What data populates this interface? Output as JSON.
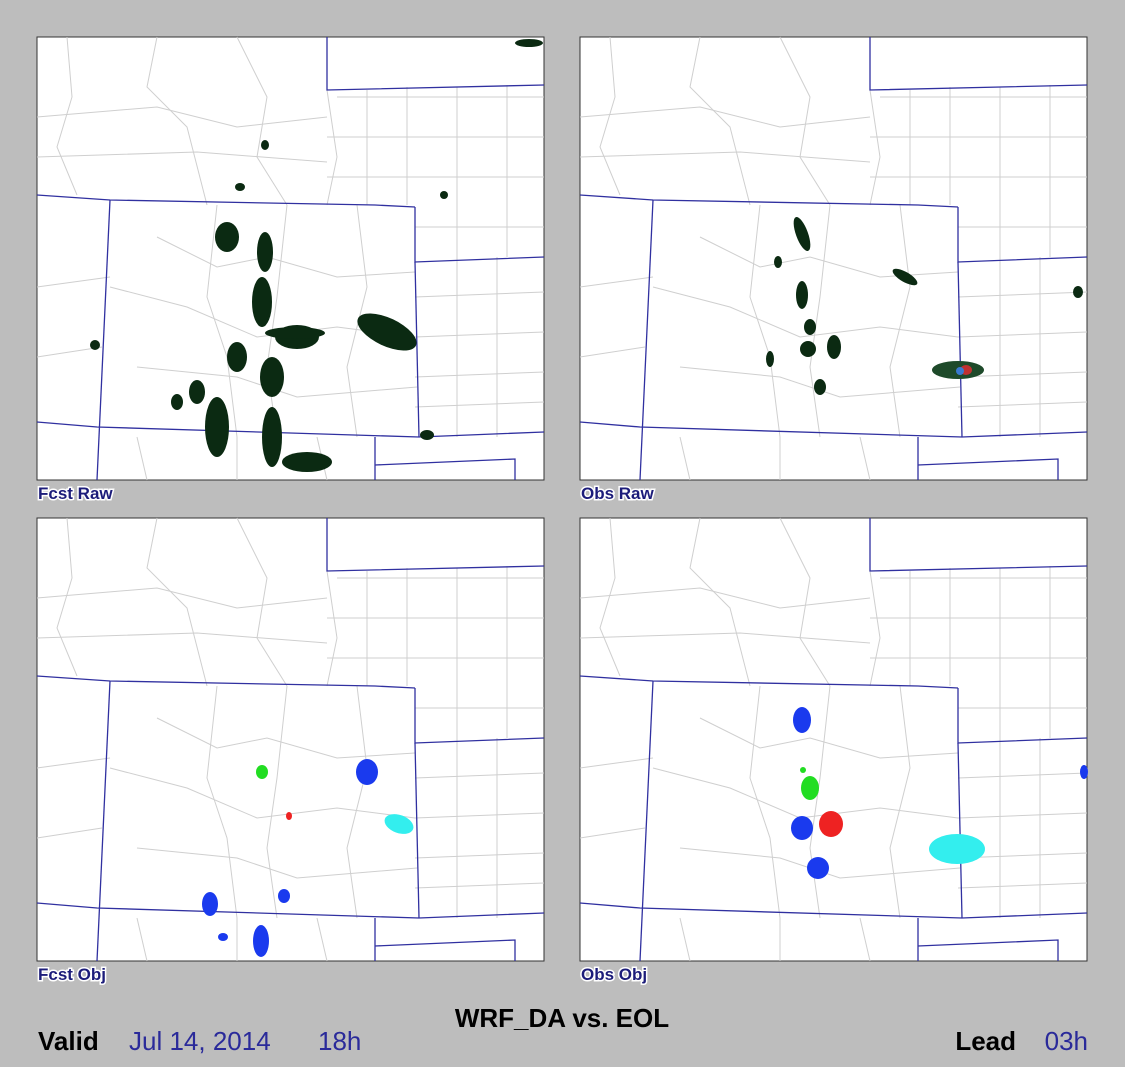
{
  "title": "WRF_DA vs. EOL",
  "panels": [
    {
      "label": "Fcst Raw"
    },
    {
      "label": "Obs Raw"
    },
    {
      "label": "Fcst Obj"
    },
    {
      "label": "Obs Obj"
    }
  ],
  "footer": {
    "valid_label": "Valid",
    "valid_date": "Jul 14, 2014",
    "valid_hour": "18h",
    "lead_label": "Lead",
    "lead_time": "03h"
  }
}
